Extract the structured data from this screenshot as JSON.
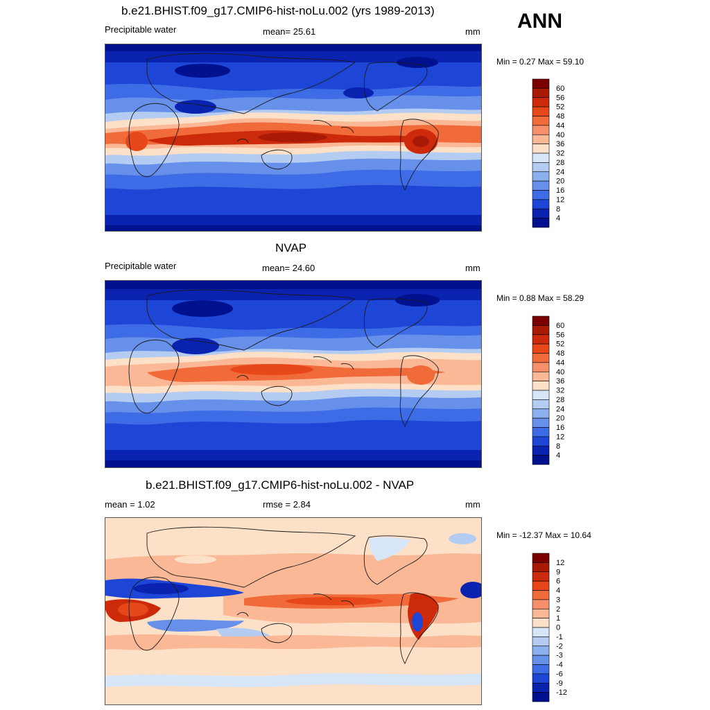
{
  "season": "ANN",
  "panels": [
    {
      "id": "model",
      "title": "b.e21.BHIST.f09_g17.CMIP6-hist-noLu.002 (yrs 1989-2013)",
      "left_label": "Precipitable water",
      "center_label": "mean=  25.61",
      "units": "mm",
      "minmax": "Min =   0.27 Max =  59.10",
      "colorbar": {
        "labels": [
          "60",
          "56",
          "52",
          "48",
          "44",
          "40",
          "36",
          "32",
          "28",
          "24",
          "20",
          "16",
          "12",
          "8",
          "4"
        ],
        "colors": [
          "#7a0000",
          "#a81a05",
          "#cc2a0a",
          "#e8471a",
          "#f06a3a",
          "#f6906a",
          "#fab896",
          "#fde0c8",
          "#d6e6f8",
          "#b4ccf2",
          "#8cb0ee",
          "#6690ea",
          "#3e6ce6",
          "#1e46d6",
          "#0a22b0",
          "#001190"
        ]
      }
    },
    {
      "id": "obs",
      "title": "NVAP",
      "left_label": "Precipitable water",
      "center_label": "mean=  24.60",
      "units": "mm",
      "minmax": "Min =   0.88 Max =  58.29",
      "colorbar": {
        "labels": [
          "60",
          "56",
          "52",
          "48",
          "44",
          "40",
          "36",
          "32",
          "28",
          "24",
          "20",
          "16",
          "12",
          "8",
          "4"
        ],
        "colors": [
          "#7a0000",
          "#a81a05",
          "#cc2a0a",
          "#e8471a",
          "#f06a3a",
          "#f6906a",
          "#fab896",
          "#fde0c8",
          "#d6e6f8",
          "#b4ccf2",
          "#8cb0ee",
          "#6690ea",
          "#3e6ce6",
          "#1e46d6",
          "#0a22b0",
          "#001190"
        ]
      }
    },
    {
      "id": "diff",
      "title": "b.e21.BHIST.f09_g17.CMIP6-hist-noLu.002 - NVAP",
      "left_label": "mean =   1.02",
      "center_label": "rmse =   2.84",
      "units": "mm",
      "minmax": "Min = -12.37 Max =  10.64",
      "colorbar": {
        "labels": [
          "12",
          "9",
          "6",
          "4",
          "3",
          "2",
          "1",
          "0",
          "-1",
          "-2",
          "-3",
          "-4",
          "-6",
          "-9",
          "-12"
        ],
        "colors": [
          "#7a0000",
          "#a81a05",
          "#cc2a0a",
          "#e8471a",
          "#f06a3a",
          "#f6906a",
          "#fab896",
          "#fde0c8",
          "#d6e6f8",
          "#b4ccf2",
          "#8cb0ee",
          "#6690ea",
          "#3e6ce6",
          "#1e46d6",
          "#0a22b0",
          "#001190"
        ]
      }
    }
  ],
  "palette": {
    "deep_blue": "#001190",
    "blue": "#1e46d6",
    "mid_blue": "#6690ea",
    "light_blue": "#b4ccf2",
    "cream": "#fde0c8",
    "salmon": "#fab896",
    "orange": "#f06a3a",
    "red": "#cc2a0a",
    "dark_red": "#7a0000",
    "coast": "#1a1a1a"
  }
}
